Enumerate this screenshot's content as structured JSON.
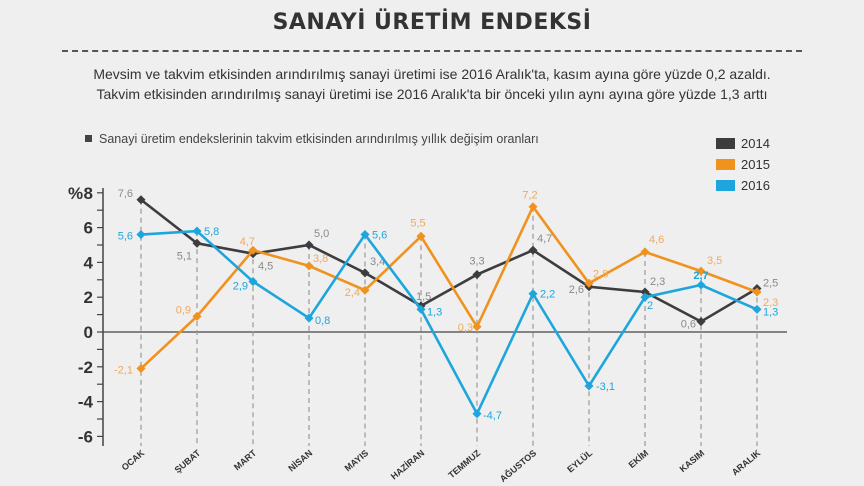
{
  "title": "SANAYİ ÜRETİM ENDEKSİ",
  "subtitle1": "Mevsim ve takvim etkisinden arındırılmış sanayi üretimi ise 2016 Aralık'ta, kasım ayına göre yüzde 0,2 azaldı.",
  "subtitle2": "Takvim etkisinden arındırılmış sanayi üretimi ise 2016 Aralık'ta bir önceki yılın aynı ayına göre yüzde 1,3 arttı",
  "note": "Sanayi üretim endekslerinin takvim etkisinden arındırılmış yıllık değişim oranları",
  "chart_data": {
    "type": "line",
    "ylabel": "%",
    "ylim": [
      -6,
      8
    ],
    "yticks": [
      8,
      6,
      4,
      2,
      0,
      -2,
      -4,
      -6
    ],
    "categories": [
      "OCAK",
      "ŞUBAT",
      "MART",
      "NİSAN",
      "MAYIS",
      "HAZİRAN",
      "TEMMUZ",
      "AĞUSTOS",
      "EYLÜL",
      "EKİM",
      "KASIM",
      "ARALIK"
    ],
    "legend_position": "top-right",
    "series": [
      {
        "name": "2014",
        "color": "#3d3d3f",
        "labelColor": "#8a8a8a",
        "values": [
          7.6,
          5.1,
          4.5,
          5.0,
          3.4,
          1.5,
          3.3,
          4.7,
          2.6,
          2.3,
          0.6,
          2.5
        ],
        "labels": [
          "7,6",
          "5,1",
          "4,5",
          "5,0",
          "3,4",
          "1,5",
          "3,3",
          "4,7",
          "2,6",
          "2,3",
          "0,6",
          "2,5"
        ]
      },
      {
        "name": "2015",
        "color": "#f0921e",
        "labelColor": "#f0a95a",
        "values": [
          -2.1,
          0.9,
          4.7,
          3.8,
          2.4,
          5.5,
          0.3,
          7.2,
          2.8,
          4.6,
          3.5,
          2.3
        ],
        "labels": [
          "-2,1",
          "0,9",
          "4,7",
          "3,8",
          "2,4",
          "5,5",
          "0,3",
          "7,2",
          "2,8",
          "4,6",
          "3,5",
          "2,3"
        ]
      },
      {
        "name": "2016",
        "color": "#1ea6dc",
        "labelColor": "#1ea6dc",
        "values": [
          5.6,
          5.8,
          2.9,
          0.8,
          5.6,
          1.3,
          -4.7,
          2.2,
          -3.1,
          2,
          2.7,
          1.3
        ],
        "labels": [
          "5,6",
          "5,8",
          "2,9",
          "0,8",
          "5,6",
          "1,3",
          "-4,7",
          "2,2",
          "-3,1",
          "2",
          "2,7",
          "1,3"
        ]
      }
    ]
  }
}
